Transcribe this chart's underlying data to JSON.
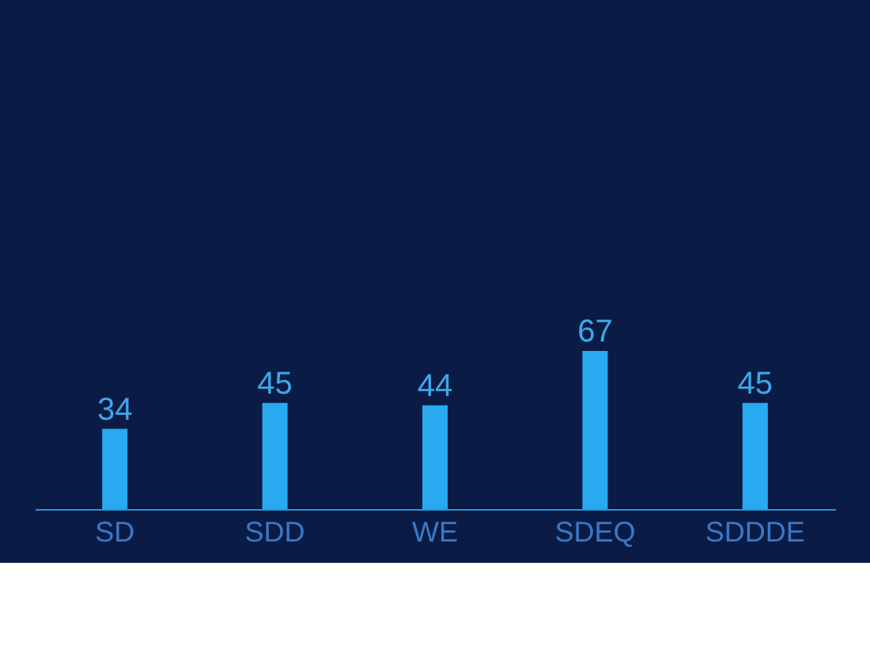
{
  "chart_data": {
    "type": "bar",
    "categories": [
      "SD",
      "SDD",
      "WE",
      "SDEQ",
      "SDDDE"
    ],
    "series": [
      {
        "color": "#29aaf0",
        "values": [
          34,
          45,
          44,
          67,
          45
        ]
      }
    ],
    "data_labels": true,
    "tick_labels": "x"
  }
}
